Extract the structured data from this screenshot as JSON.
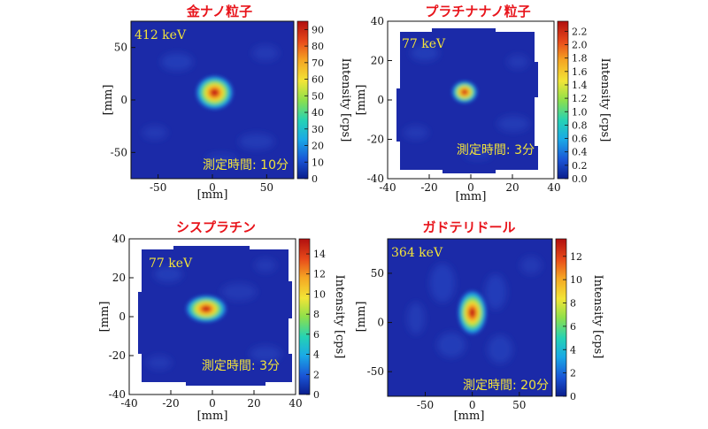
{
  "colors": {
    "title_red": "#e8141b",
    "annotation_yellow": "#f2e33a",
    "background_blue": "#1b2aa8",
    "colormap": [
      "#0b1d8c",
      "#1a55d6",
      "#1aa9e6",
      "#25d2b4",
      "#8fe04a",
      "#f2e536",
      "#f5a623",
      "#e84a1a",
      "#b10f0f"
    ]
  },
  "chart_data": [
    {
      "type": "heatmap",
      "title": "金ナノ粒子",
      "energy_label": "412 keV",
      "time_label": "測定時間: 10分",
      "xlabel": "[mm]",
      "ylabel": "[mm]",
      "colorbar_label": "Intensity [cps]",
      "xlim": [
        -75,
        75
      ],
      "ylim": [
        -75,
        75
      ],
      "x_ticks": [
        -50,
        0,
        50
      ],
      "y_ticks": [
        -50,
        0,
        50
      ],
      "cb_range": [
        0,
        95
      ],
      "cb_ticks": [
        0,
        10,
        20,
        30,
        40,
        50,
        60,
        70,
        80,
        90
      ],
      "hotspot": {
        "x": 2,
        "y": 7,
        "peak": 95
      },
      "field_shape": "square"
    },
    {
      "type": "heatmap",
      "title": "プラチナナノ粒子",
      "energy_label": "77 keV",
      "time_label": "測定時間: 3分",
      "xlabel": "[mm]",
      "ylabel": "[mm]",
      "colorbar_label": "Intensity [cps]",
      "xlim": [
        -40,
        40
      ],
      "ylim": [
        -40,
        40
      ],
      "x_ticks": [
        -40,
        -20,
        0,
        20,
        40
      ],
      "y_ticks": [
        -40,
        -20,
        0,
        20,
        40
      ],
      "cb_range": [
        0,
        2.35
      ],
      "cb_ticks": [
        "0.0",
        "0.2",
        "0.4",
        "0.6",
        "0.8",
        "1.0",
        "1.2",
        "1.4",
        "1.6",
        "1.8",
        "2.0",
        "2.2"
      ],
      "hotspot": {
        "x": -3,
        "y": 4,
        "peak": 2.3
      },
      "field_shape": "notched"
    },
    {
      "type": "heatmap",
      "title": "シスプラチン",
      "energy_label": "77 keV",
      "time_label": "測定時間: 3分",
      "xlabel": "[mm]",
      "ylabel": "[mm]",
      "colorbar_label": "Intensity [cps]",
      "xlim": [
        -40,
        40
      ],
      "ylim": [
        -40,
        40
      ],
      "x_ticks": [
        -40,
        -20,
        0,
        20,
        40
      ],
      "y_ticks": [
        -40,
        -20,
        0,
        20,
        40
      ],
      "cb_range": [
        0,
        15.5
      ],
      "cb_ticks": [
        0,
        2,
        4,
        6,
        8,
        10,
        12,
        14
      ],
      "hotspot": {
        "x": -3,
        "y": 4,
        "peak": 15
      },
      "field_shape": "notched"
    },
    {
      "type": "heatmap",
      "title": "ガドテリドール",
      "energy_label": "364 keV",
      "time_label": "測定時間: 20分",
      "xlabel": "[mm]",
      "ylabel": "[mm]",
      "colorbar_label": "Intensity [cps]",
      "xlim": [
        -90,
        85
      ],
      "ylim": [
        -75,
        85
      ],
      "x_ticks": [
        -50,
        0,
        50
      ],
      "y_ticks": [
        -50,
        0,
        50
      ],
      "cb_range": [
        0,
        13.5
      ],
      "cb_ticks": [
        0,
        2,
        4,
        6,
        8,
        10,
        12
      ],
      "hotspot": {
        "x": 0,
        "y": 10,
        "peak": 13
      },
      "field_shape": "square"
    }
  ]
}
